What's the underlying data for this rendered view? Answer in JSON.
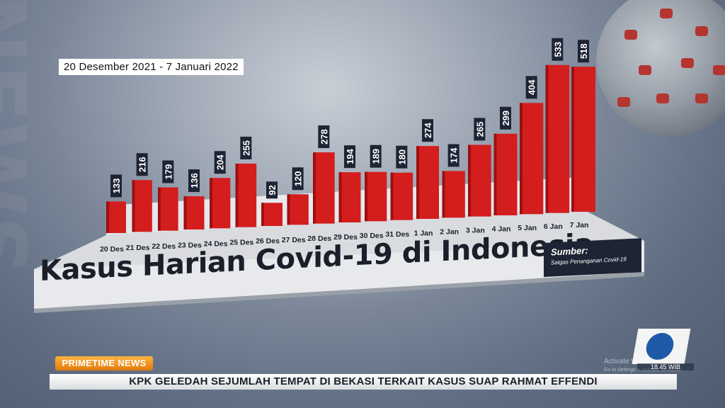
{
  "date_range": "20 Desember 2021 - 7 Januari 2022",
  "source_label": "Sumber:",
  "source_text": "Satgas Penanganan Covid-19",
  "program_label": "PRIMETIME NEWS",
  "ticker": "KPK GELEDAH SEJUMLAH TEMPAT DI BEKASI TERKAIT KASUS SUAP RAHMAT EFFENDI",
  "clock": "18.45 WIB",
  "watermark": {
    "line1": "Activate Windows",
    "line2": "Go to Settings to activate Windows."
  },
  "colors": {
    "bar": "#d41d1d",
    "accent": "#f39a1e",
    "dark": "#1e2433"
  },
  "chart_data": {
    "type": "bar",
    "title": "Kasus Harian Covid-19 di Indonesia",
    "categories": [
      "20 Des",
      "21 Des",
      "22 Des",
      "23 Des",
      "24 Des",
      "25 Des",
      "26 Des",
      "27 Des",
      "28 Des",
      "29 Des",
      "30 Des",
      "31 Des",
      "1 Jan",
      "2 Jan",
      "3 Jan",
      "4 Jan",
      "5 Jan",
      "6 Jan",
      "7 Jan"
    ],
    "values": [
      133,
      216,
      179,
      136,
      204,
      255,
      92,
      120,
      278,
      194,
      189,
      180,
      274,
      174,
      265,
      299,
      404,
      533,
      518
    ],
    "bar_labels": [
      "133",
      "216",
      "179",
      "136",
      "204",
      "255",
      "92",
      "120",
      "278",
      "194",
      "189",
      "180",
      "274",
      "174",
      "265",
      "299",
      "404",
      "533",
      "518"
    ],
    "xlabel": "",
    "ylabel": "",
    "grid": false,
    "legend": "none"
  }
}
